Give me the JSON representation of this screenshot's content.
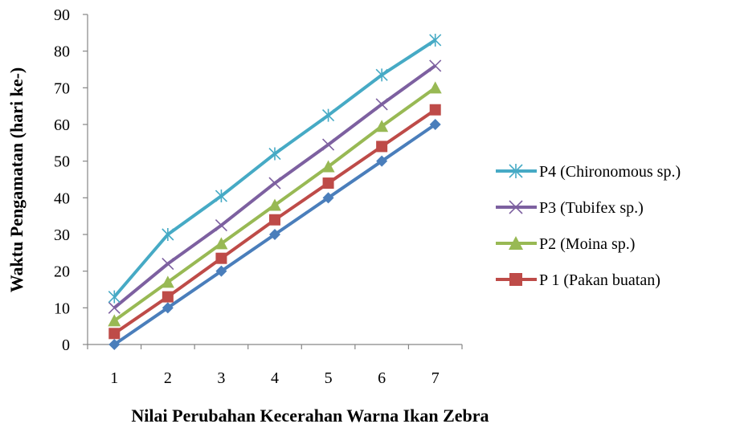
{
  "chart_data": {
    "type": "line",
    "title": "",
    "xlabel": "Nilai Perubahan Kecerahan Warna Ikan Zebra",
    "ylabel": "Waktu Pengamatan (hari ke-)",
    "categories": [
      "1",
      "2",
      "3",
      "4",
      "5",
      "6",
      "7"
    ],
    "ylim": [
      0,
      90
    ],
    "yticks": [
      "0",
      "10",
      "20",
      "30",
      "40",
      "50",
      "60",
      "70",
      "80",
      "90"
    ],
    "grid": false,
    "legend_position": "right",
    "series": [
      {
        "name": "",
        "color": "#4a7ebb",
        "marker": "diamond",
        "in_legend": false,
        "values": [
          0,
          10,
          20,
          30,
          40,
          50,
          60
        ]
      },
      {
        "name": "P 1 (Pakan buatan)",
        "color": "#be4b48",
        "marker": "square",
        "in_legend": true,
        "values": [
          3,
          13,
          23.5,
          34,
          44,
          54,
          64
        ]
      },
      {
        "name": "P2 (Moina sp.)",
        "color": "#98b954",
        "marker": "triangle",
        "in_legend": true,
        "values": [
          6.5,
          17,
          27.5,
          38,
          48.5,
          59.5,
          70
        ]
      },
      {
        "name": "P3 (Tubifex sp.)",
        "color": "#7d60a0",
        "marker": "x",
        "in_legend": true,
        "values": [
          10,
          22,
          32.5,
          44,
          54.5,
          65.5,
          76
        ]
      },
      {
        "name": "P4 (Chironomous sp.)",
        "color": "#46aac5",
        "marker": "star",
        "in_legend": true,
        "values": [
          13,
          30,
          40.5,
          52,
          62.5,
          73.5,
          83
        ]
      }
    ],
    "legend_order": [
      "P4 (Chironomous sp.)",
      "P3 (Tubifex sp.)",
      "P2 (Moina sp.)",
      "P 1 (Pakan buatan)"
    ]
  }
}
